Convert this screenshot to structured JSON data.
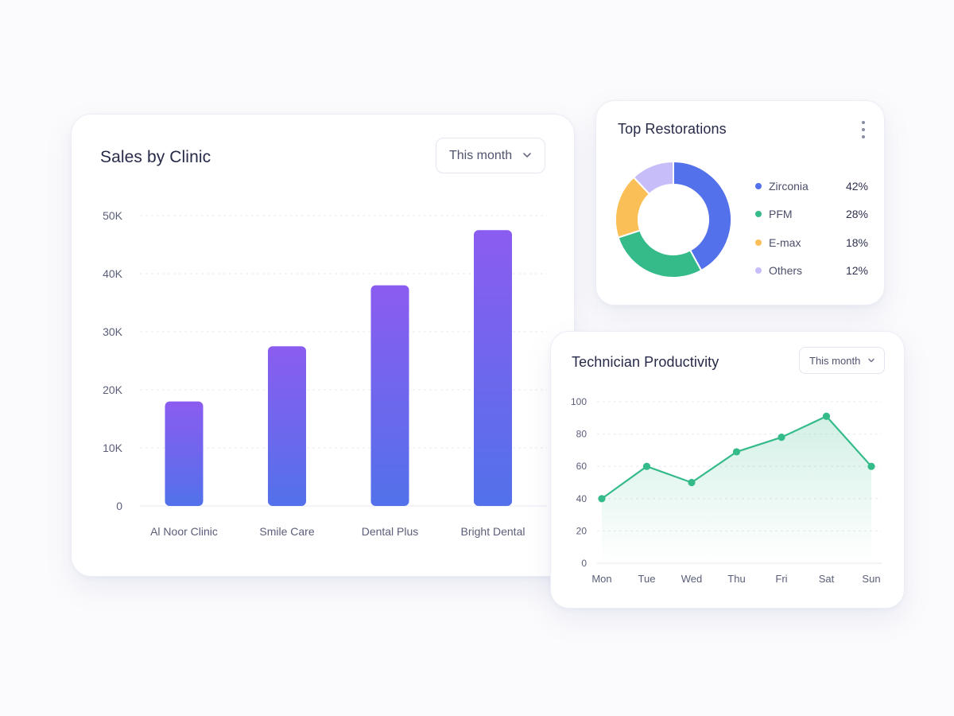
{
  "sales_card": {
    "title": "Sales by Clinic",
    "period_dropdown": "This month"
  },
  "restorations_card": {
    "title": "Top Restorations",
    "menu_icon": "more-vertical-icon",
    "legend": [
      {
        "label": "Zirconia",
        "value": "42%",
        "color": "#5271ea"
      },
      {
        "label": "PFM",
        "value": "28%",
        "color": "#35bb8a"
      },
      {
        "label": "E-max",
        "value": "18%",
        "color": "#fbbf57"
      },
      {
        "label": "Others",
        "value": "12%",
        "color": "#c7bdf8"
      }
    ]
  },
  "productivity_card": {
    "title": "Technician Productivity",
    "period_dropdown": "This month"
  },
  "colors": {
    "bar_top": "#8b5cf0",
    "bar_bottom": "#5271ea",
    "line": "#35bb8a",
    "axis_text": "#5a5e78",
    "grid": "#e8e9f2"
  },
  "chart_data": [
    {
      "type": "bar",
      "title": "Sales by Clinic",
      "categories": [
        "Al Noor Clinic",
        "Smile Care",
        "Dental Plus",
        "Bright Dental"
      ],
      "values": [
        18000,
        27500,
        38000,
        47500
      ],
      "ylim": [
        0,
        50000
      ],
      "yticks": [
        0,
        10000,
        20000,
        30000,
        40000,
        50000
      ],
      "ytick_labels": [
        "0",
        "10K",
        "20K",
        "30K",
        "40K",
        "50K"
      ],
      "grid": true
    },
    {
      "type": "pie",
      "title": "Top Restorations",
      "labels": [
        "Zirconia",
        "PFM",
        "E-max",
        "Others"
      ],
      "values": [
        42,
        28,
        18,
        12
      ],
      "donut": true
    },
    {
      "type": "line",
      "title": "Technician Productivity",
      "categories": [
        "Mon",
        "Tue",
        "Wed",
        "Thu",
        "Fri",
        "Sat",
        "Sun"
      ],
      "values": [
        40,
        60,
        50,
        69,
        78,
        91,
        60
      ],
      "ylim": [
        0,
        100
      ],
      "yticks": [
        0,
        20,
        40,
        60,
        80,
        100
      ],
      "area_fill": true,
      "grid": true
    }
  ]
}
